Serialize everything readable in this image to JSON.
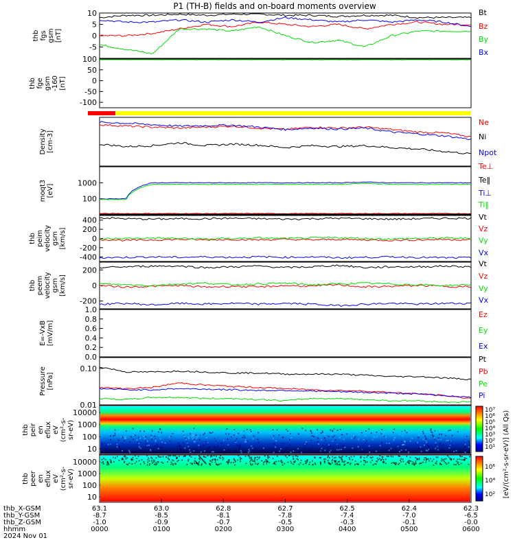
{
  "title": "P1 (TH-B) fields and on-board moments overview",
  "footer": {
    "rows": [
      {
        "label": "thb_X-GSM",
        "values": [
          "63.1",
          "63.0",
          "62.8",
          "62.7",
          "62.5",
          "62.4",
          "62.3"
        ]
      },
      {
        "label": "thb_Y-GSM",
        "values": [
          "-8.7",
          "-8.5",
          "-8.1",
          "-7.8",
          "-7.4",
          "-7.0",
          "-6.5"
        ]
      },
      {
        "label": "thb_Z-GSM",
        "values": [
          "-1.0",
          "-0.9",
          "-0.7",
          "-0.5",
          "-0.3",
          "-0.1",
          "-0.0"
        ]
      },
      {
        "label": "hhmm",
        "values": [
          "0000",
          "0100",
          "0200",
          "0300",
          "0400",
          "0500",
          "0600"
        ]
      }
    ],
    "date": "2024 Nov 01"
  },
  "colorbar": {
    "label": "[eV/(cm²-s-sr-eV)] (All Qs)",
    "labels_top": [
      "10⁷",
      "10⁶",
      "10⁵",
      "10⁴",
      "10³",
      "10²",
      "10¹"
    ],
    "labels_bottom": [
      "10⁶",
      "10⁴",
      "10²"
    ]
  },
  "colors": {
    "black": "#000000",
    "red": "#ff0000",
    "green": "#00dd00",
    "blue": "#0000ff",
    "yellow": "#ffff00"
  },
  "chart_data": [
    {
      "type": "line",
      "id": "fgs",
      "ylabel": [
        "thb",
        "fgs",
        "gsm",
        "[nT]"
      ],
      "yticks": [
        "10",
        "5",
        "0",
        "-5"
      ],
      "ylim": [
        -10,
        10
      ],
      "series": [
        {
          "name": "Bt",
          "color": "black",
          "values": [
            8,
            9,
            9,
            9.5,
            9,
            9.5,
            9.5,
            9,
            9,
            8.5,
            9,
            9,
            8,
            8,
            8
          ]
        },
        {
          "name": "Bz",
          "color": "red",
          "values": [
            0,
            0,
            1,
            3,
            5,
            4,
            6,
            5,
            4,
            5,
            3,
            5,
            6,
            5,
            5
          ]
        },
        {
          "name": "By",
          "color": "green",
          "values": [
            -4,
            -6,
            -8,
            3,
            3,
            2,
            4,
            0,
            -3,
            -2,
            -5,
            0,
            2,
            2,
            2
          ]
        },
        {
          "name": "Bx",
          "color": "blue",
          "values": [
            7,
            6,
            6,
            7,
            6,
            7,
            6,
            8,
            7,
            6,
            7,
            6,
            7,
            6,
            4
          ]
        }
      ]
    },
    {
      "type": "line",
      "id": "fge_dsl",
      "ylabel": [
        "thb",
        "fge",
        "gsm",
        "-160",
        "[nT]"
      ],
      "yticks": [
        "100",
        "50",
        "0",
        "-50",
        "-100"
      ],
      "ylim": [
        -125,
        100
      ],
      "series": [
        {
          "name": "",
          "color": "green",
          "values": [
            100,
            100,
            100
          ]
        }
      ]
    },
    {
      "type": "line",
      "id": "density",
      "ylabel": [
        "Density",
        "[cm-3]"
      ],
      "ylim": [
        0,
        1
      ],
      "series": [
        {
          "name": "Ne",
          "color": "red",
          "values": [
            0.85,
            0.82,
            0.8,
            0.78,
            0.8,
            0.82,
            0.78,
            0.75,
            0.8,
            0.78,
            0.8,
            0.75,
            0.7,
            0.68,
            0.6
          ]
        },
        {
          "name": "Ni",
          "color": "black",
          "values": [
            0.45,
            0.4,
            0.42,
            0.48,
            0.42,
            0.45,
            0.43,
            0.38,
            0.42,
            0.4,
            0.42,
            0.38,
            0.35,
            0.3,
            0.25
          ]
        },
        {
          "name": "Npot",
          "color": "blue",
          "values": [
            0.9,
            0.88,
            0.85,
            0.82,
            0.83,
            0.84,
            0.8,
            0.75,
            0.78,
            0.76,
            0.78,
            0.7,
            0.66,
            0.62,
            0.55
          ]
        }
      ]
    },
    {
      "type": "line",
      "id": "temperature",
      "ylabel": [
        "moqt3",
        "[eV]"
      ],
      "yticks": [
        "1000",
        "100"
      ],
      "ylim": [
        1,
        4
      ],
      "scale": "log",
      "series": [
        {
          "name": "Te⊥",
          "color": "red",
          "values": [
            12,
            12,
            12,
            12,
            12,
            12,
            12,
            12,
            12,
            12,
            12,
            12,
            12,
            12,
            12
          ]
        },
        {
          "name": "Te‖",
          "color": "black",
          "values": [
            8,
            8,
            8,
            8,
            8,
            8,
            8,
            8,
            8,
            8,
            8,
            8,
            8,
            8,
            8
          ]
        },
        {
          "name": "Ti⊥",
          "color": "blue",
          "values": [
            100,
            100,
            1000,
            1000,
            1000,
            1000,
            1000,
            1000,
            1000,
            1000,
            1100,
            1000,
            1000,
            1000,
            1000
          ]
        },
        {
          "name": "Ti‖",
          "color": "green",
          "values": [
            90,
            90,
            800,
            800,
            800,
            800,
            800,
            800,
            800,
            800,
            900,
            800,
            800,
            800,
            800
          ]
        }
      ]
    },
    {
      "type": "line",
      "id": "peim_velocity",
      "ylabel": [
        "thb",
        "peim",
        "velocity",
        "gsm",
        "[km/s]"
      ],
      "yticks": [
        "400",
        "200",
        "0",
        "-200",
        "-400"
      ],
      "ylim": [
        -500,
        500
      ],
      "series": [
        {
          "name": "Vt",
          "color": "black",
          "values": [
            450,
            430,
            420,
            430,
            430,
            440,
            430,
            420,
            430,
            440,
            430,
            420,
            430,
            440,
            440
          ]
        },
        {
          "name": "Vz",
          "color": "red",
          "values": [
            -20,
            -40,
            -30,
            -20,
            -30,
            -20,
            -30,
            -20,
            -30,
            -20,
            -30,
            -40,
            -30,
            -20,
            -30
          ]
        },
        {
          "name": "Vy",
          "color": "green",
          "values": [
            -10,
            0,
            10,
            0,
            -10,
            0,
            10,
            0,
            10,
            20,
            0,
            -10,
            0,
            10,
            0
          ]
        },
        {
          "name": "Vx",
          "color": "blue",
          "values": [
            -420,
            -410,
            -400,
            -410,
            -400,
            -410,
            -400,
            -410,
            -400,
            -420,
            -410,
            -400,
            -410,
            -420,
            -420
          ]
        }
      ]
    },
    {
      "type": "line",
      "id": "peem_velocity",
      "ylabel": [
        "thb",
        "peem",
        "velocity",
        "gsm",
        "[km/s]"
      ],
      "yticks": [
        "200",
        "0",
        "-200"
      ],
      "ylim": [
        -300,
        300
      ],
      "series": [
        {
          "name": "Vt",
          "color": "black",
          "values": [
            230,
            240,
            250,
            250,
            230,
            240,
            250,
            230,
            240,
            260,
            230,
            240,
            240,
            250,
            240
          ]
        },
        {
          "name": "Vz",
          "color": "red",
          "values": [
            0,
            -20,
            -10,
            0,
            -20,
            -10,
            -20,
            0,
            -10,
            10,
            -20,
            -10,
            0,
            -10,
            -20
          ]
        },
        {
          "name": "Vy",
          "color": "green",
          "values": [
            20,
            10,
            0,
            20,
            30,
            10,
            20,
            30,
            10,
            20,
            30,
            20,
            10,
            0,
            10
          ]
        },
        {
          "name": "Vx",
          "color": "blue",
          "values": [
            -240,
            -230,
            -250,
            -230,
            -240,
            -230,
            -240,
            -230,
            -240,
            -260,
            -240,
            -230,
            -240,
            -230,
            -230
          ]
        }
      ]
    },
    {
      "type": "line",
      "id": "efield",
      "ylabel": [
        "E=-VxB",
        "[mV/m]"
      ],
      "yticks": [
        "1.0",
        "0.8",
        "0.6",
        "0.4",
        "0.2",
        "0.0"
      ],
      "ylim": [
        0,
        1
      ],
      "series": [
        {
          "name": "Ez",
          "color": "red",
          "values": []
        },
        {
          "name": "Ey",
          "color": "green",
          "values": []
        },
        {
          "name": "Ex",
          "color": "blue",
          "values": []
        }
      ]
    },
    {
      "type": "line",
      "id": "pressure",
      "ylabel": [
        "Pressure",
        "[nPa]"
      ],
      "yticks": [
        "0.10",
        "0.01"
      ],
      "ylim": [
        -2,
        -0.7
      ],
      "scale": "log",
      "series": [
        {
          "name": "Pt",
          "color": "black",
          "values": [
            0.11,
            0.08,
            0.08,
            0.085,
            0.08,
            0.075,
            0.075,
            0.07,
            0.07,
            0.07,
            0.065,
            0.06,
            0.06,
            0.055,
            0.05
          ]
        },
        {
          "name": "Pb",
          "color": "red",
          "values": [
            0.03,
            0.028,
            0.03,
            0.04,
            0.035,
            0.032,
            0.03,
            0.028,
            0.026,
            0.025,
            0.024,
            0.022,
            0.02,
            0.018,
            0.015
          ]
        },
        {
          "name": "Pe",
          "color": "green",
          "values": [
            0.015,
            0.014,
            0.016,
            0.016,
            0.015,
            0.015,
            0.014,
            0.013,
            0.015,
            0.015,
            0.014,
            0.013,
            0.013,
            0.012,
            0.012
          ]
        },
        {
          "name": "Pi",
          "color": "blue",
          "values": [
            0.028,
            0.026,
            0.026,
            0.028,
            0.027,
            0.026,
            0.025,
            0.025,
            0.024,
            0.023,
            0.022,
            0.021,
            0.02,
            0.018,
            0.016
          ]
        }
      ]
    },
    {
      "type": "heatmap",
      "id": "peir",
      "ylabel": [
        "thb",
        "peir",
        "en",
        "eflux",
        "eV",
        "(cm²-s-",
        "sr-eV)"
      ],
      "yticks": [
        "10000",
        "1000",
        "100",
        "10"
      ]
    },
    {
      "type": "heatmap",
      "id": "peer",
      "ylabel": [
        "thb",
        "peer",
        "en",
        "eflux",
        "eV",
        "(cm²-s-",
        "sr-eV)"
      ],
      "yticks": [
        "10000",
        "1000",
        "100",
        "10"
      ]
    }
  ]
}
